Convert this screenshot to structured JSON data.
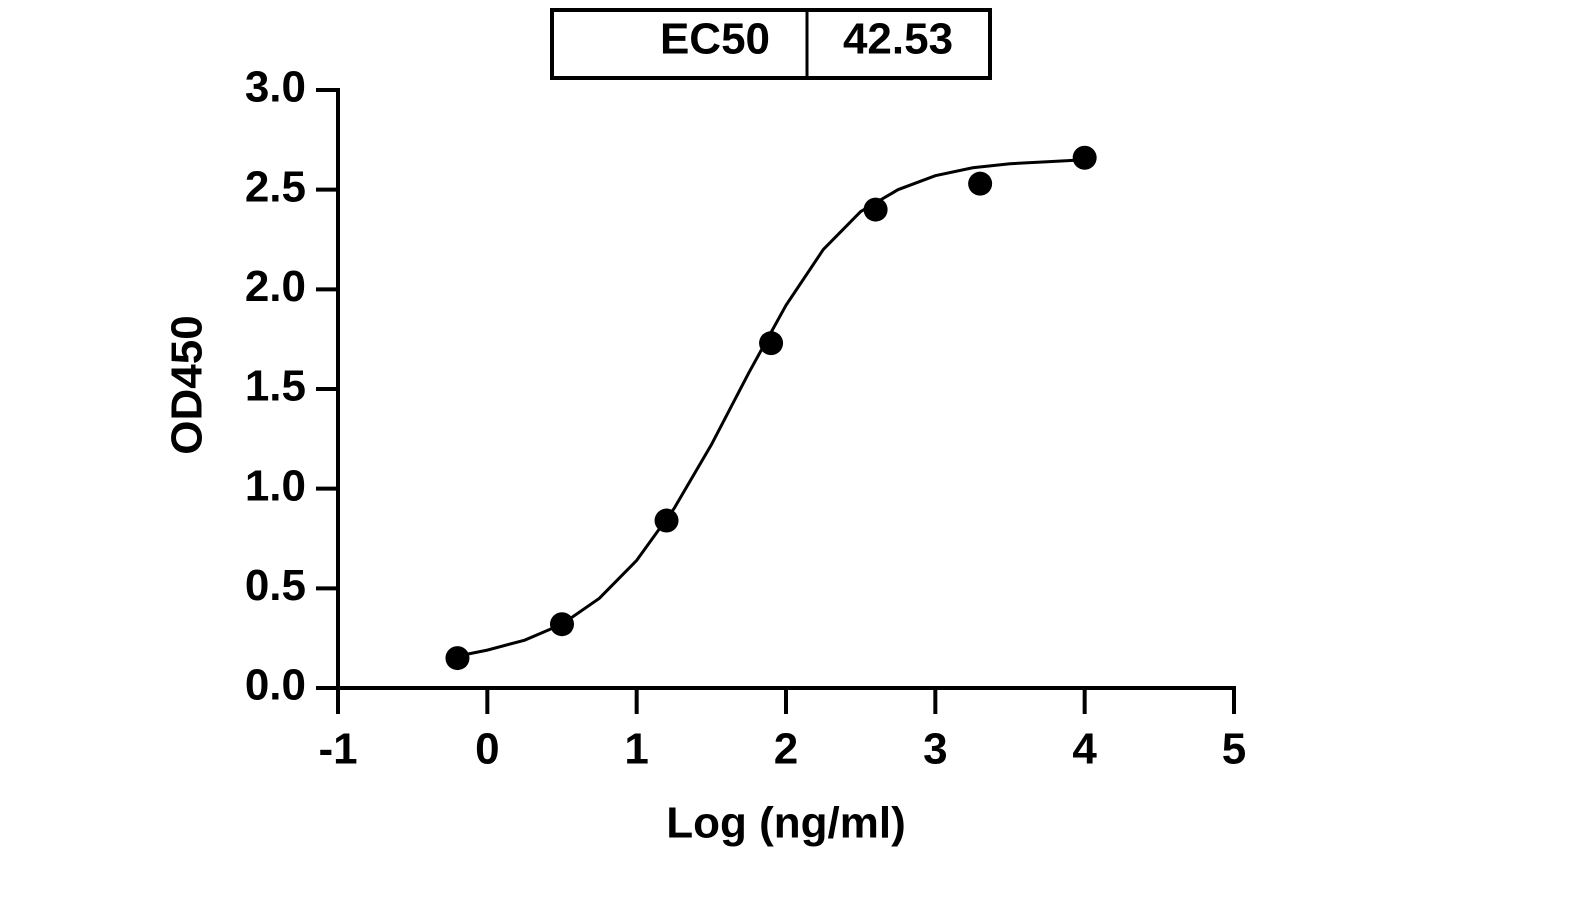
{
  "chart_data": {
    "type": "scatter",
    "table": {
      "header": "EC50",
      "value": "42.53"
    },
    "x_label": "Log (ng/ml)",
    "y_label": "OD450",
    "xlim": [
      -1,
      5
    ],
    "xticks": [
      -1,
      0,
      1,
      2,
      3,
      4,
      5
    ],
    "ylim": [
      0,
      3
    ],
    "yticks": [
      {
        "value": 0,
        "label": "0.0"
      },
      {
        "value": 0.5,
        "label": "0.5"
      },
      {
        "value": 1,
        "label": "1.0"
      },
      {
        "value": 1.5,
        "label": "1.5"
      },
      {
        "value": 2,
        "label": "2.0"
      },
      {
        "value": 2.5,
        "label": "2.5"
      },
      {
        "value": 3,
        "label": "3.0"
      }
    ],
    "series": [
      {
        "color": "#000000",
        "style": "points",
        "x": [
          -0.2,
          0.5,
          1.2,
          1.9,
          2.6,
          3.3,
          4.0
        ],
        "values": [
          0.15,
          0.32,
          0.84,
          1.73,
          2.4,
          2.53,
          2.66
        ]
      },
      {
        "color": "#000000",
        "style": "line",
        "x": [
          -0.2,
          0,
          0.25,
          0.5,
          0.75,
          1.0,
          1.25,
          1.5,
          1.75,
          2.0,
          2.25,
          2.5,
          2.75,
          3.0,
          3.25,
          3.5,
          3.75,
          4.0
        ],
        "values": [
          0.16,
          0.19,
          0.24,
          0.32,
          0.45,
          0.64,
          0.9,
          1.22,
          1.58,
          1.92,
          2.2,
          2.39,
          2.5,
          2.57,
          2.61,
          2.63,
          2.64,
          2.65
        ]
      }
    ]
  }
}
